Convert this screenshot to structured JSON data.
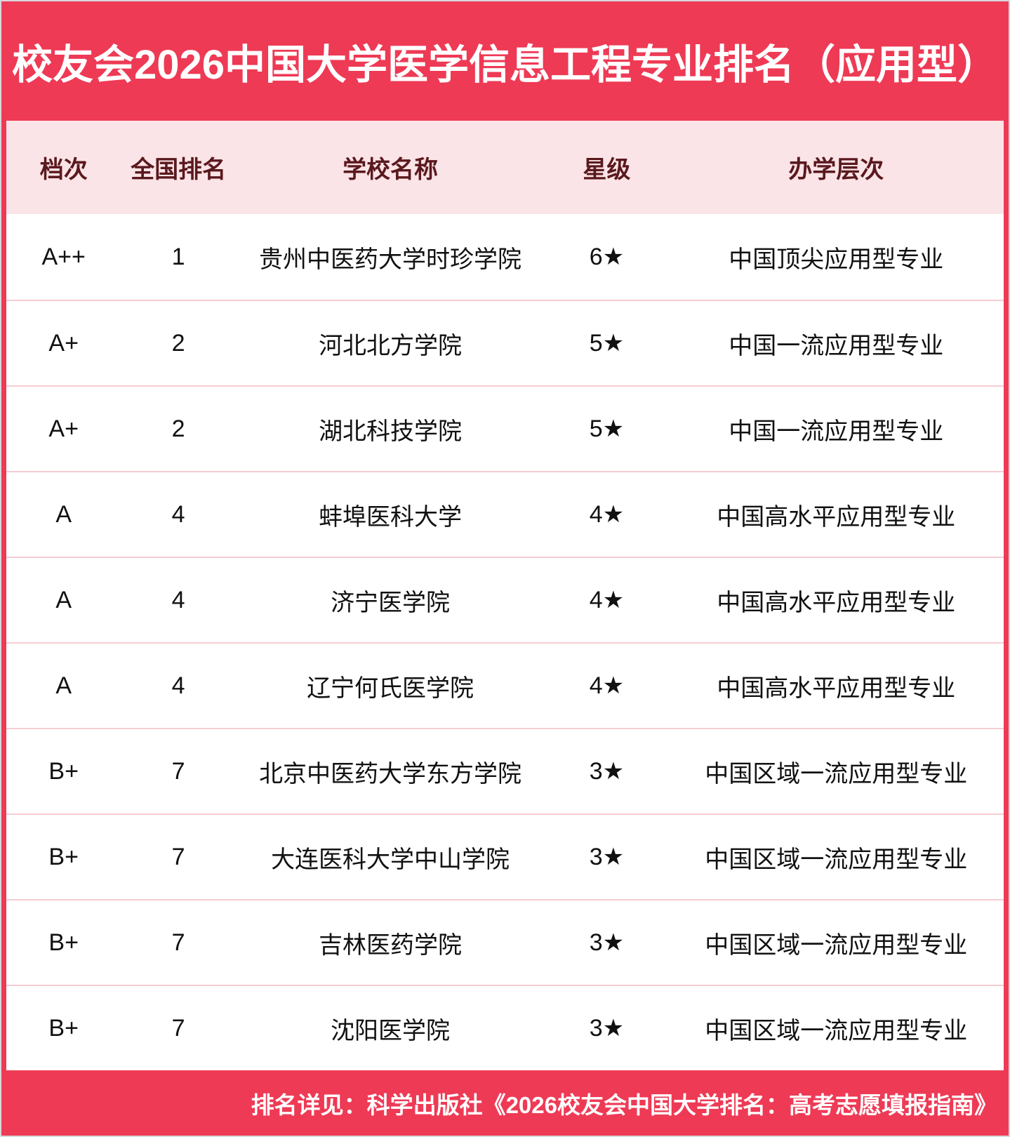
{
  "title": "校友会2026中国大学医学信息工程专业排名（应用型）",
  "colors": {
    "accent_red": "#ee3a55",
    "header_bg": "#fbe4e7",
    "header_text": "#5a191e",
    "row_separator": "#f7ccd3",
    "row_text": "#111111",
    "title_text": "#ffffff"
  },
  "table": {
    "columns": [
      {
        "key": "tier",
        "label": "档次"
      },
      {
        "key": "rank",
        "label": "全国排名"
      },
      {
        "key": "school",
        "label": "学校名称"
      },
      {
        "key": "stars",
        "label": "星级"
      },
      {
        "key": "level",
        "label": "办学层次"
      }
    ],
    "rows": [
      {
        "tier": "A++",
        "rank": "1",
        "school": "贵州中医药大学时珍学院",
        "stars": "6★",
        "level": "中国顶尖应用型专业"
      },
      {
        "tier": "A+",
        "rank": "2",
        "school": "河北北方学院",
        "stars": "5★",
        "level": "中国一流应用型专业"
      },
      {
        "tier": "A+",
        "rank": "2",
        "school": "湖北科技学院",
        "stars": "5★",
        "level": "中国一流应用型专业"
      },
      {
        "tier": "A",
        "rank": "4",
        "school": "蚌埠医科大学",
        "stars": "4★",
        "level": "中国高水平应用型专业"
      },
      {
        "tier": "A",
        "rank": "4",
        "school": "济宁医学院",
        "stars": "4★",
        "level": "中国高水平应用型专业"
      },
      {
        "tier": "A",
        "rank": "4",
        "school": "辽宁何氏医学院",
        "stars": "4★",
        "level": "中国高水平应用型专业"
      },
      {
        "tier": "B+",
        "rank": "7",
        "school": "北京中医药大学东方学院",
        "stars": "3★",
        "level": "中国区域一流应用型专业"
      },
      {
        "tier": "B+",
        "rank": "7",
        "school": "大连医科大学中山学院",
        "stars": "3★",
        "level": "中国区域一流应用型专业"
      },
      {
        "tier": "B+",
        "rank": "7",
        "school": "吉林医药学院",
        "stars": "3★",
        "level": "中国区域一流应用型专业"
      },
      {
        "tier": "B+",
        "rank": "7",
        "school": "沈阳医学院",
        "stars": "3★",
        "level": "中国区域一流应用型专业"
      }
    ]
  },
  "footer": {
    "note": "排名详见：科学出版社《2026校友会中国大学排名：高考志愿填报指南》"
  }
}
